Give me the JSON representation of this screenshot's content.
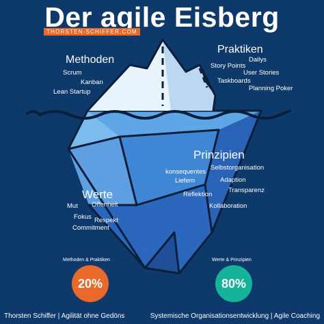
{
  "title": "Der agile Eisberg",
  "badge": "THORSTEN-SCHIFFER.COM",
  "methoden": {
    "heading": "Methoden",
    "items": [
      "Scrum",
      "Kanban",
      "Lean Startup"
    ]
  },
  "praktiken": {
    "heading": "Praktiken",
    "items": [
      "Dailys",
      "Story Points",
      "User Stories",
      "Taskboards",
      "Planning Poker"
    ]
  },
  "prinzipien": {
    "heading": "Prinzipien",
    "items": [
      "Selbstorganisation",
      "konsequentes",
      "Liefern",
      "Adaption",
      "Transparenz",
      "Reflektion",
      "Kollaboration"
    ]
  },
  "werte": {
    "heading": "Werte",
    "items": [
      "Mut",
      "Offenheit",
      "Fokus",
      "Respekt",
      "Commitment"
    ]
  },
  "stats": {
    "left_label": "Methoden & Praktiken",
    "left_percent": 20,
    "left_value": "20%",
    "right_label": "Werte & Prinzipien",
    "right_percent": 80,
    "right_value": "80%"
  },
  "footer": {
    "left": "Thorsten Schiffer | Agilität ohne Gedöns",
    "right": "Systemische Organisationsentwicklung | Agile Coaching"
  },
  "colors": {
    "background": "#0d3a6b",
    "accent_orange": "#e8692a",
    "accent_teal": "#14b39a",
    "iceberg_light": "#6fb0e8",
    "iceberg_dark": "#2f6fc2"
  }
}
